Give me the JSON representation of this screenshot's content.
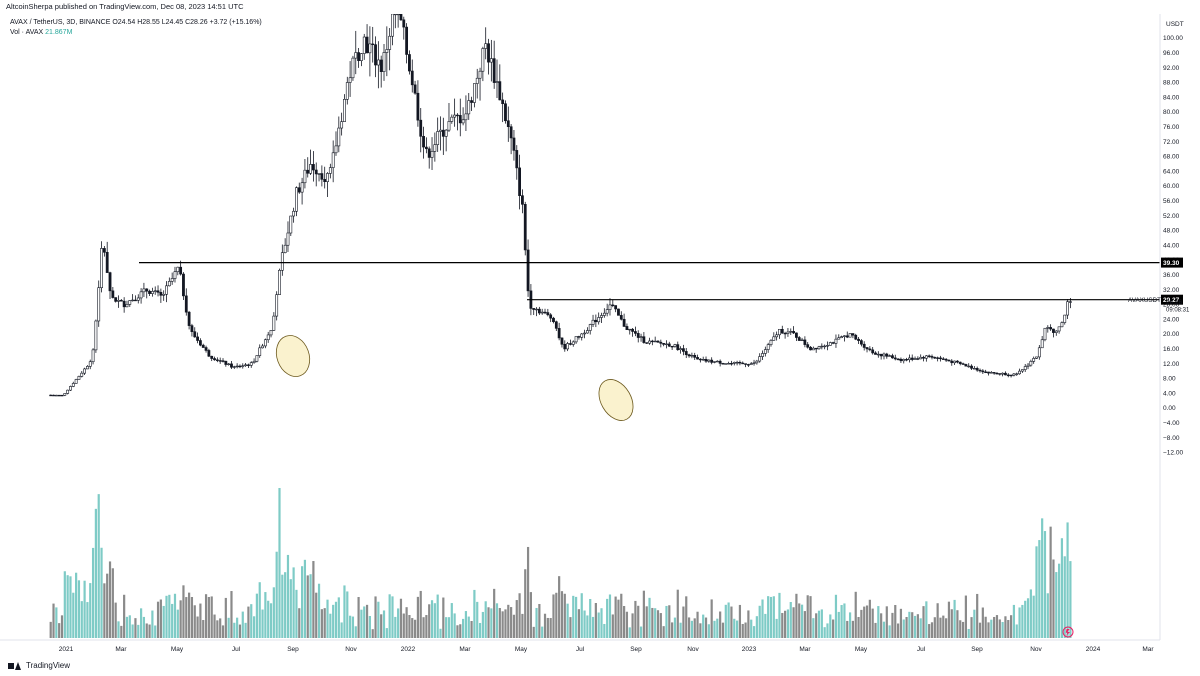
{
  "header": {
    "published": "AltcoinSherpa published on TradingView.com, Dec 08, 2023 14:51 UTC"
  },
  "legend": {
    "symbol_line": "AVAX / TetherUS, 3D, BINANCE  O24.54  H28.55  L24.45  C28.26  +3.72 (+15.16%)",
    "vol_label": "Vol · AVAX",
    "vol_value": "21.867M"
  },
  "price_axis": {
    "currency": "USDT",
    "labels": [
      "100.00",
      "96.00",
      "92.00",
      "88.00",
      "84.00",
      "80.00",
      "76.00",
      "72.00",
      "68.00",
      "64.00",
      "60.00",
      "56.00",
      "52.00",
      "48.00",
      "44.00",
      "40.00",
      "36.00",
      "32.00",
      "28.00",
      "24.00",
      "20.00",
      "16.00",
      "12.00",
      "8.00",
      "4.00",
      "0.00",
      "−4.00",
      "−8.00",
      "−12.00"
    ],
    "level_high": "39.30",
    "level_low": "29.27",
    "symbol": "AVAXUSDT",
    "last_price": "28.26",
    "countdown": "09:08:31"
  },
  "time_axis": {
    "labels": [
      "2021",
      "Mar",
      "May",
      "Jul",
      "Sep",
      "Nov",
      "2022",
      "Mar",
      "May",
      "Jul",
      "Sep",
      "Nov",
      "2023",
      "Mar",
      "May",
      "Jul",
      "Sep",
      "Nov",
      "2024",
      "Mar"
    ]
  },
  "footer": {
    "brand": "TradingView"
  },
  "colors": {
    "up_volume": "#7ecbc6",
    "down_volume": "#8a8a8a",
    "candle": "#131722",
    "highlight": "#f6e7a6",
    "line": "#000000"
  },
  "chart_data": {
    "type": "candlestick",
    "title": "AVAX / TetherUS, 3D, BINANCE",
    "ylabel": "USDT",
    "ylim": [
      -14,
      102
    ],
    "horizontal_levels": [
      39.3,
      29.27
    ],
    "price_path": [
      {
        "date": "2020-12-20",
        "price": 3.5
      },
      {
        "date": "2021-01-05",
        "price": 3.4
      },
      {
        "date": "2021-01-20",
        "price": 8
      },
      {
        "date": "2021-02-05",
        "price": 13
      },
      {
        "date": "2021-02-12",
        "price": 32
      },
      {
        "date": "2021-02-16",
        "price": 46
      },
      {
        "date": "2021-02-25",
        "price": 30
      },
      {
        "date": "2021-03-10",
        "price": 28
      },
      {
        "date": "2021-04-05",
        "price": 32
      },
      {
        "date": "2021-04-20",
        "price": 30
      },
      {
        "date": "2021-05-08",
        "price": 38
      },
      {
        "date": "2021-05-20",
        "price": 21
      },
      {
        "date": "2021-06-10",
        "price": 14
      },
      {
        "date": "2021-07-05",
        "price": 11
      },
      {
        "date": "2021-07-25",
        "price": 12
      },
      {
        "date": "2021-08-15",
        "price": 22
      },
      {
        "date": "2021-08-25",
        "price": 40
      },
      {
        "date": "2021-09-10",
        "price": 58
      },
      {
        "date": "2021-09-25",
        "price": 66
      },
      {
        "date": "2021-10-15",
        "price": 62
      },
      {
        "date": "2021-11-05",
        "price": 90
      },
      {
        "date": "2021-11-20",
        "price": 100
      },
      {
        "date": "2021-12-10",
        "price": 92
      },
      {
        "date": "2021-12-25",
        "price": 110
      },
      {
        "date": "2022-01-10",
        "price": 90
      },
      {
        "date": "2022-01-25",
        "price": 68
      },
      {
        "date": "2022-02-15",
        "price": 76
      },
      {
        "date": "2022-03-10",
        "price": 80
      },
      {
        "date": "2022-03-30",
        "price": 98
      },
      {
        "date": "2022-04-15",
        "price": 84
      },
      {
        "date": "2022-04-28",
        "price": 70
      },
      {
        "date": "2022-05-08",
        "price": 54
      },
      {
        "date": "2022-05-15",
        "price": 28
      },
      {
        "date": "2022-06-10",
        "price": 24
      },
      {
        "date": "2022-06-20",
        "price": 16
      },
      {
        "date": "2022-07-10",
        "price": 20
      },
      {
        "date": "2022-08-10",
        "price": 28
      },
      {
        "date": "2022-08-25",
        "price": 22
      },
      {
        "date": "2022-09-15",
        "price": 18
      },
      {
        "date": "2022-10-15",
        "price": 17
      },
      {
        "date": "2022-11-10",
        "price": 13
      },
      {
        "date": "2022-12-15",
        "price": 12
      },
      {
        "date": "2023-01-10",
        "price": 12
      },
      {
        "date": "2023-02-05",
        "price": 21
      },
      {
        "date": "2023-02-20",
        "price": 20
      },
      {
        "date": "2023-03-10",
        "price": 16
      },
      {
        "date": "2023-04-05",
        "price": 18
      },
      {
        "date": "2023-04-20",
        "price": 20
      },
      {
        "date": "2023-05-15",
        "price": 15
      },
      {
        "date": "2023-06-15",
        "price": 13
      },
      {
        "date": "2023-07-15",
        "price": 14
      },
      {
        "date": "2023-08-15",
        "price": 12
      },
      {
        "date": "2023-09-15",
        "price": 9.5
      },
      {
        "date": "2023-10-15",
        "price": 9
      },
      {
        "date": "2023-11-05",
        "price": 14
      },
      {
        "date": "2023-11-15",
        "price": 22
      },
      {
        "date": "2023-11-25",
        "price": 20
      },
      {
        "date": "2023-12-05",
        "price": 24.5
      },
      {
        "date": "2023-12-08",
        "price": 28.26
      }
    ]
  }
}
